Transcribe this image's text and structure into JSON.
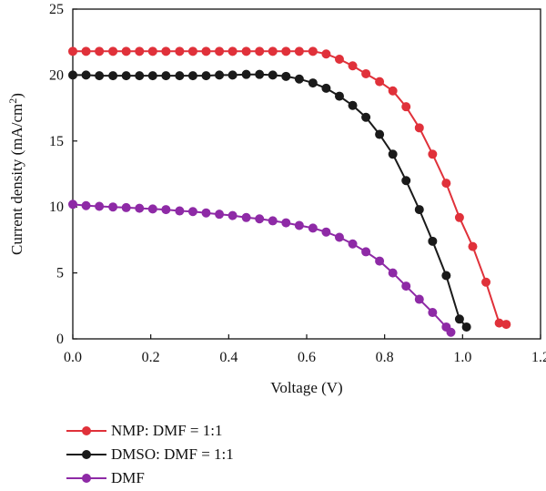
{
  "chart_data": {
    "type": "line",
    "xlabel": "Voltage (V)",
    "ylabel_main": "Current density (mA/cm",
    "ylabel_sup": "2",
    "ylabel_close": ")",
    "xlim": [
      0,
      1.2
    ],
    "ylim": [
      0,
      25
    ],
    "x_ticks": [
      0.0,
      0.2,
      0.4,
      0.6,
      0.8,
      1.0,
      1.2
    ],
    "x_tick_labels": [
      "0.0",
      "0.2",
      "0.4",
      "0.6",
      "0.8",
      "1.0",
      "1.2"
    ],
    "y_ticks": [
      0,
      5,
      10,
      15,
      20,
      25
    ],
    "y_tick_labels": [
      "0",
      "5",
      "10",
      "15",
      "20",
      "25"
    ],
    "grid": false,
    "legend_position": "bottom-left below plot",
    "series": [
      {
        "name": "NMP: DMF = 1:1",
        "color": "#e0313a",
        "x": [
          0.0,
          0.034,
          0.068,
          0.103,
          0.137,
          0.171,
          0.205,
          0.239,
          0.274,
          0.308,
          0.342,
          0.376,
          0.41,
          0.445,
          0.479,
          0.513,
          0.547,
          0.581,
          0.616,
          0.65,
          0.684,
          0.718,
          0.752,
          0.787,
          0.821,
          0.855,
          0.889,
          0.923,
          0.958,
          0.992,
          1.026,
          1.06,
          1.094,
          1.112
        ],
        "y": [
          21.8,
          21.8,
          21.8,
          21.8,
          21.8,
          21.8,
          21.8,
          21.8,
          21.8,
          21.8,
          21.8,
          21.8,
          21.8,
          21.8,
          21.8,
          21.8,
          21.8,
          21.8,
          21.8,
          21.6,
          21.2,
          20.7,
          20.1,
          19.5,
          18.8,
          17.6,
          16.0,
          14.0,
          11.8,
          9.2,
          7.0,
          4.3,
          1.2,
          1.1
        ]
      },
      {
        "name": "DMSO: DMF = 1:1",
        "color": "#1a1a1a",
        "x": [
          0.0,
          0.034,
          0.068,
          0.103,
          0.137,
          0.171,
          0.205,
          0.239,
          0.274,
          0.308,
          0.342,
          0.376,
          0.41,
          0.445,
          0.479,
          0.513,
          0.547,
          0.581,
          0.616,
          0.65,
          0.684,
          0.718,
          0.752,
          0.787,
          0.821,
          0.855,
          0.889,
          0.923,
          0.958,
          0.992,
          1.01
        ],
        "y": [
          20.0,
          20.0,
          19.95,
          19.95,
          19.95,
          19.95,
          19.95,
          19.95,
          19.95,
          19.95,
          19.95,
          20.0,
          20.0,
          20.05,
          20.05,
          20.0,
          19.9,
          19.7,
          19.4,
          19.0,
          18.4,
          17.7,
          16.8,
          15.5,
          14.0,
          12.0,
          9.8,
          7.4,
          4.8,
          1.5,
          0.9
        ]
      },
      {
        "name": "DMF",
        "color": "#8e2aa6",
        "x": [
          0.0,
          0.034,
          0.068,
          0.103,
          0.137,
          0.171,
          0.205,
          0.239,
          0.274,
          0.308,
          0.342,
          0.376,
          0.41,
          0.445,
          0.479,
          0.513,
          0.547,
          0.581,
          0.616,
          0.65,
          0.684,
          0.718,
          0.752,
          0.787,
          0.821,
          0.855,
          0.889,
          0.923,
          0.958,
          0.97
        ],
        "y": [
          10.2,
          10.1,
          10.05,
          10.0,
          9.95,
          9.9,
          9.85,
          9.8,
          9.7,
          9.65,
          9.55,
          9.45,
          9.35,
          9.2,
          9.1,
          8.95,
          8.8,
          8.6,
          8.4,
          8.1,
          7.7,
          7.2,
          6.6,
          5.9,
          5.0,
          4.0,
          3.0,
          2.0,
          0.9,
          0.5
        ]
      }
    ]
  }
}
